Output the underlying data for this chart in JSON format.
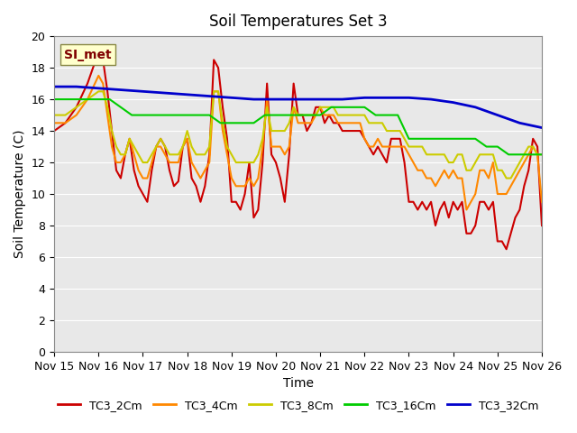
{
  "title": "Soil Temperatures Set 3",
  "xlabel": "Time",
  "ylabel": "Soil Temperature (C)",
  "xlim": [
    0,
    11
  ],
  "ylim": [
    0,
    20
  ],
  "yticks": [
    0,
    2,
    4,
    6,
    8,
    10,
    12,
    14,
    16,
    18,
    20
  ],
  "xtick_labels": [
    "Nov 15",
    "Nov 16",
    "Nov 17",
    "Nov 18",
    "Nov 19",
    "Nov 20",
    "Nov 21",
    "Nov 22",
    "Nov 23",
    "Nov 24",
    "Nov 25",
    "Nov 26"
  ],
  "bg_color": "#e8e8e8",
  "annotation_text": "SI_met",
  "annotation_color": "#800000",
  "annotation_bg": "#ffffcc",
  "series": {
    "TC3_2Cm": {
      "color": "#cc0000",
      "lw": 1.5,
      "x": [
        0.0,
        0.25,
        0.5,
        0.75,
        1.0,
        1.1,
        1.2,
        1.3,
        1.4,
        1.5,
        1.6,
        1.7,
        1.8,
        1.9,
        2.0,
        2.1,
        2.2,
        2.3,
        2.4,
        2.5,
        2.6,
        2.7,
        2.8,
        2.9,
        3.0,
        3.1,
        3.2,
        3.3,
        3.4,
        3.5,
        3.6,
        3.7,
        3.8,
        3.9,
        4.0,
        4.1,
        4.2,
        4.3,
        4.4,
        4.5,
        4.6,
        4.7,
        4.8,
        4.9,
        5.0,
        5.1,
        5.2,
        5.3,
        5.4,
        5.5,
        5.6,
        5.7,
        5.8,
        5.9,
        6.0,
        6.1,
        6.2,
        6.3,
        6.4,
        6.5,
        6.6,
        6.7,
        6.8,
        6.9,
        7.0,
        7.1,
        7.2,
        7.3,
        7.4,
        7.5,
        7.6,
        7.7,
        7.8,
        7.9,
        8.0,
        8.1,
        8.2,
        8.3,
        8.4,
        8.5,
        8.6,
        8.7,
        8.8,
        8.9,
        9.0,
        9.1,
        9.2,
        9.3,
        9.4,
        9.5,
        9.6,
        9.7,
        9.8,
        9.9,
        10.0,
        10.1,
        10.2,
        10.3,
        10.4,
        10.5,
        10.6,
        10.7,
        10.8,
        10.9,
        11.0
      ],
      "y": [
        14.0,
        14.5,
        15.5,
        17.0,
        19.0,
        18.5,
        16.5,
        14.0,
        11.5,
        11.0,
        12.5,
        13.5,
        11.5,
        10.5,
        10.0,
        9.5,
        11.5,
        13.0,
        13.5,
        13.0,
        11.5,
        10.5,
        10.8,
        13.0,
        13.5,
        11.0,
        10.5,
        9.5,
        10.5,
        12.5,
        18.5,
        18.0,
        15.5,
        13.5,
        9.5,
        9.5,
        9.0,
        10.0,
        12.0,
        8.5,
        9.0,
        12.0,
        17.0,
        12.5,
        12.0,
        11.0,
        9.5,
        12.5,
        17.0,
        15.0,
        15.0,
        14.0,
        14.5,
        15.5,
        15.5,
        14.5,
        15.0,
        14.5,
        14.5,
        14.0,
        14.0,
        14.0,
        14.0,
        14.0,
        13.5,
        13.0,
        12.5,
        13.0,
        12.5,
        12.0,
        13.5,
        13.5,
        13.5,
        12.0,
        9.5,
        9.5,
        9.0,
        9.5,
        9.0,
        9.5,
        8.0,
        9.0,
        9.5,
        8.5,
        9.5,
        9.0,
        9.5,
        7.5,
        7.5,
        8.0,
        9.5,
        9.5,
        9.0,
        9.5,
        7.0,
        7.0,
        6.5,
        7.5,
        8.5,
        9.0,
        10.5,
        11.5,
        13.5,
        13.0,
        8.0
      ]
    },
    "TC3_4Cm": {
      "color": "#ff8800",
      "lw": 1.5,
      "x": [
        0.0,
        0.25,
        0.5,
        0.75,
        1.0,
        1.1,
        1.2,
        1.3,
        1.4,
        1.5,
        1.6,
        1.7,
        1.8,
        1.9,
        2.0,
        2.1,
        2.2,
        2.3,
        2.4,
        2.5,
        2.6,
        2.7,
        2.8,
        2.9,
        3.0,
        3.1,
        3.2,
        3.3,
        3.4,
        3.5,
        3.6,
        3.7,
        3.8,
        3.9,
        4.0,
        4.1,
        4.2,
        4.3,
        4.4,
        4.5,
        4.6,
        4.7,
        4.8,
        4.9,
        5.0,
        5.1,
        5.2,
        5.3,
        5.4,
        5.5,
        5.6,
        5.7,
        5.8,
        5.9,
        6.0,
        6.1,
        6.2,
        6.3,
        6.4,
        6.5,
        6.6,
        6.7,
        6.8,
        6.9,
        7.0,
        7.1,
        7.2,
        7.3,
        7.4,
        7.5,
        7.6,
        7.7,
        7.8,
        7.9,
        8.0,
        8.1,
        8.2,
        8.3,
        8.4,
        8.5,
        8.6,
        8.7,
        8.8,
        8.9,
        9.0,
        9.1,
        9.2,
        9.3,
        9.4,
        9.5,
        9.6,
        9.7,
        9.8,
        9.9,
        10.0,
        10.1,
        10.2,
        10.3,
        10.4,
        10.5,
        10.6,
        10.7,
        10.8,
        10.9,
        11.0
      ],
      "y": [
        14.5,
        14.5,
        15.0,
        16.0,
        17.5,
        17.0,
        15.0,
        13.0,
        12.0,
        12.0,
        12.5,
        13.5,
        12.5,
        11.5,
        11.0,
        11.0,
        12.0,
        13.0,
        13.0,
        12.5,
        12.0,
        12.0,
        12.0,
        13.0,
        13.5,
        12.0,
        11.5,
        11.0,
        11.5,
        12.0,
        16.5,
        16.5,
        14.0,
        12.5,
        11.0,
        10.5,
        10.5,
        10.5,
        11.0,
        10.5,
        11.0,
        13.0,
        16.0,
        13.0,
        13.0,
        13.0,
        12.5,
        13.0,
        15.5,
        14.5,
        14.5,
        14.5,
        14.5,
        15.0,
        15.5,
        15.0,
        15.0,
        15.0,
        14.5,
        14.5,
        14.5,
        14.5,
        14.5,
        14.5,
        13.5,
        13.0,
        13.0,
        13.5,
        13.0,
        13.0,
        13.0,
        13.0,
        13.0,
        13.0,
        12.5,
        12.0,
        11.5,
        11.5,
        11.0,
        11.0,
        10.5,
        11.0,
        11.5,
        11.0,
        11.5,
        11.0,
        11.0,
        9.0,
        9.5,
        10.0,
        11.5,
        11.5,
        11.0,
        12.0,
        10.0,
        10.0,
        10.0,
        10.5,
        11.0,
        11.5,
        12.0,
        12.5,
        13.0,
        12.5,
        9.5
      ]
    },
    "TC3_8Cm": {
      "color": "#cccc00",
      "lw": 1.5,
      "x": [
        0.0,
        0.25,
        0.5,
        0.75,
        1.0,
        1.1,
        1.2,
        1.3,
        1.4,
        1.5,
        1.6,
        1.7,
        1.8,
        1.9,
        2.0,
        2.1,
        2.2,
        2.3,
        2.4,
        2.5,
        2.6,
        2.7,
        2.8,
        2.9,
        3.0,
        3.1,
        3.2,
        3.3,
        3.4,
        3.5,
        3.6,
        3.7,
        3.8,
        3.9,
        4.0,
        4.1,
        4.2,
        4.3,
        4.4,
        4.5,
        4.6,
        4.7,
        4.8,
        4.9,
        5.0,
        5.1,
        5.2,
        5.3,
        5.4,
        5.5,
        5.6,
        5.7,
        5.8,
        5.9,
        6.0,
        6.1,
        6.2,
        6.3,
        6.4,
        6.5,
        6.6,
        6.7,
        6.8,
        6.9,
        7.0,
        7.1,
        7.2,
        7.3,
        7.4,
        7.5,
        7.6,
        7.7,
        7.8,
        7.9,
        8.0,
        8.1,
        8.2,
        8.3,
        8.4,
        8.5,
        8.6,
        8.7,
        8.8,
        8.9,
        9.0,
        9.1,
        9.2,
        9.3,
        9.4,
        9.5,
        9.6,
        9.7,
        9.8,
        9.9,
        10.0,
        10.1,
        10.2,
        10.3,
        10.4,
        10.5,
        10.6,
        10.7,
        10.8,
        10.9,
        11.0
      ],
      "y": [
        15.0,
        15.0,
        15.5,
        16.0,
        16.5,
        16.5,
        15.5,
        14.0,
        13.0,
        12.5,
        12.5,
        13.5,
        13.0,
        12.5,
        12.0,
        12.0,
        12.5,
        13.0,
        13.5,
        13.0,
        12.5,
        12.5,
        12.5,
        13.0,
        14.0,
        13.0,
        12.5,
        12.5,
        12.5,
        13.0,
        16.5,
        16.5,
        14.5,
        13.0,
        12.5,
        12.0,
        12.0,
        12.0,
        12.0,
        12.0,
        12.5,
        13.5,
        15.5,
        14.0,
        14.0,
        14.0,
        14.0,
        14.5,
        15.5,
        15.0,
        15.0,
        15.0,
        15.0,
        15.0,
        15.5,
        15.5,
        15.5,
        15.5,
        15.0,
        15.0,
        15.0,
        15.0,
        15.0,
        15.0,
        15.0,
        14.5,
        14.5,
        14.5,
        14.5,
        14.0,
        14.0,
        14.0,
        14.0,
        13.5,
        13.0,
        13.0,
        13.0,
        13.0,
        12.5,
        12.5,
        12.5,
        12.5,
        12.5,
        12.0,
        12.0,
        12.5,
        12.5,
        11.5,
        11.5,
        12.0,
        12.5,
        12.5,
        12.5,
        12.5,
        11.5,
        11.5,
        11.0,
        11.0,
        11.5,
        12.0,
        12.5,
        13.0,
        13.0,
        12.5,
        12.5
      ]
    },
    "TC3_16Cm": {
      "color": "#00cc00",
      "lw": 1.5,
      "x": [
        0.0,
        0.25,
        0.5,
        0.75,
        1.0,
        1.25,
        1.5,
        1.75,
        2.0,
        2.25,
        2.5,
        2.75,
        3.0,
        3.25,
        3.5,
        3.75,
        4.0,
        4.25,
        4.5,
        4.75,
        5.0,
        5.25,
        5.5,
        5.75,
        6.0,
        6.25,
        6.5,
        6.75,
        7.0,
        7.25,
        7.5,
        7.75,
        8.0,
        8.25,
        8.5,
        8.75,
        9.0,
        9.25,
        9.5,
        9.75,
        10.0,
        10.25,
        10.5,
        10.75,
        11.0
      ],
      "y": [
        16.0,
        16.0,
        16.0,
        16.0,
        16.0,
        16.0,
        15.5,
        15.0,
        15.0,
        15.0,
        15.0,
        15.0,
        15.0,
        15.0,
        15.0,
        14.5,
        14.5,
        14.5,
        14.5,
        15.0,
        15.0,
        15.0,
        15.0,
        15.0,
        15.0,
        15.5,
        15.5,
        15.5,
        15.5,
        15.0,
        15.0,
        15.0,
        13.5,
        13.5,
        13.5,
        13.5,
        13.5,
        13.5,
        13.5,
        13.0,
        13.0,
        12.5,
        12.5,
        12.5,
        12.5
      ]
    },
    "TC3_32Cm": {
      "color": "#0000cc",
      "lw": 2.0,
      "x": [
        0.0,
        0.5,
        1.0,
        1.5,
        2.0,
        2.5,
        3.0,
        3.5,
        4.0,
        4.5,
        5.0,
        5.5,
        6.0,
        6.5,
        7.0,
        7.5,
        8.0,
        8.5,
        9.0,
        9.5,
        10.0,
        10.5,
        11.0
      ],
      "y": [
        16.8,
        16.8,
        16.7,
        16.6,
        16.5,
        16.4,
        16.3,
        16.2,
        16.1,
        16.0,
        16.0,
        16.0,
        16.0,
        16.0,
        16.1,
        16.1,
        16.1,
        16.0,
        15.8,
        15.5,
        15.0,
        14.5,
        14.2
      ]
    }
  },
  "legend": [
    {
      "label": "TC3_2Cm",
      "color": "#cc0000"
    },
    {
      "label": "TC3_4Cm",
      "color": "#ff8800"
    },
    {
      "label": "TC3_8Cm",
      "color": "#cccc00"
    },
    {
      "label": "TC3_16Cm",
      "color": "#00cc00"
    },
    {
      "label": "TC3_32Cm",
      "color": "#0000cc"
    }
  ]
}
